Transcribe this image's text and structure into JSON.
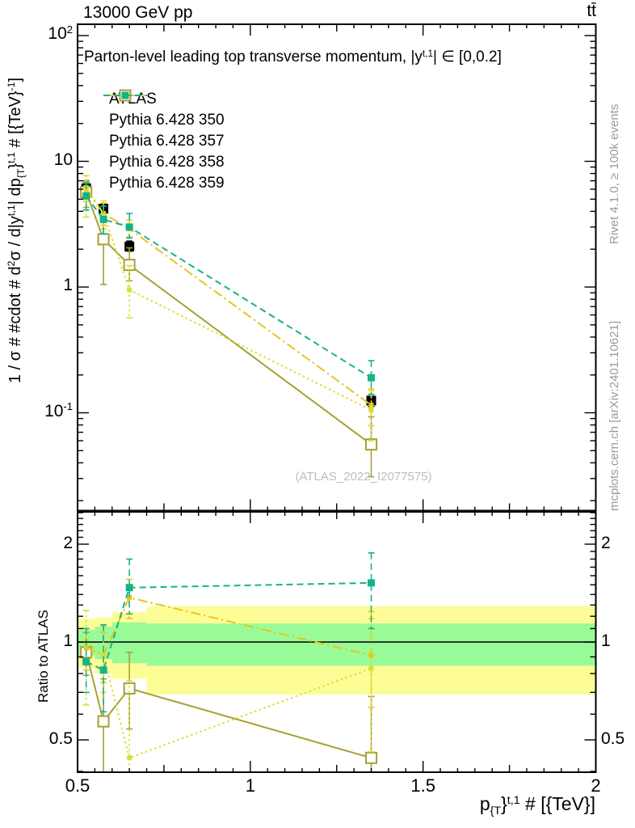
{
  "header": {
    "left_title": "13000 GeV pp",
    "right_title": "tt̄"
  },
  "plot_title": {
    "prefix": "Parton-level leading top transverse momentum, |y",
    "sup": "t,1",
    "suffix": "| ∈ [0,0.2]"
  },
  "watermark": "(ATLAS_2022_I2077575)",
  "side_notes": {
    "top": "Rivet 4.1.0, ≥ 100k events",
    "bottom": "mcplots.cern.ch [arXiv:2401.10621]"
  },
  "axes": {
    "x": {
      "tick_labels": [
        "0.5",
        "1",
        "1.5",
        "2"
      ],
      "tick_values": [
        0.5,
        1,
        1.5,
        2
      ],
      "title_parts": {
        "p1": "p",
        "b1": "{T",
        "p2": "}",
        "s1": "t,1",
        "p3": " # [{TeV}]"
      }
    },
    "y_main": {
      "tick_labels": [
        {
          "base": "10",
          "sup": "2"
        },
        {
          "base": "10",
          "sup": ""
        },
        {
          "base": "1",
          "sup": ""
        },
        {
          "base": "10",
          "sup": "-1"
        }
      ],
      "tick_values": [
        100,
        10,
        1,
        0.1
      ],
      "title_parts": {
        "p1": "1 / σ # #cdot # d",
        "s1": "2",
        "p2": "σ / d|y",
        "s2": "t,1",
        "p3": "| dp",
        "b1": "{T",
        "p4": "}",
        "s3": "t,1",
        "p5": " # [{TeV}",
        "s4": "-1",
        "p6": "]"
      }
    },
    "y_ratio": {
      "tick_labels": [
        "2",
        "1",
        "0.5"
      ],
      "tick_values": [
        2,
        1,
        0.5
      ],
      "title": "Ratio to ATLAS"
    }
  },
  "legend": {
    "entries": [
      {
        "label": "ATLAS",
        "color": "#000000",
        "line": "none",
        "marker": "filled-square",
        "marker_size": 12
      },
      {
        "label": "Pythia 6.428 350",
        "color": "#a6a135",
        "line": "solid",
        "marker": "open-square",
        "marker_size": 13
      },
      {
        "label": "Pythia 6.428 357",
        "color": "#e8c51e",
        "line": "dashdot",
        "marker": "small-square",
        "marker_size": 6
      },
      {
        "label": "Pythia 6.428 358",
        "color": "#d6e032",
        "line": "dotted",
        "marker": "small-square",
        "marker_size": 6
      },
      {
        "label": "Pythia 6.428 359",
        "color": "#16b389",
        "line": "dashed",
        "marker": "filled-square",
        "marker_size": 9
      }
    ]
  },
  "chart_data": {
    "type": "line",
    "title": "Parton-level leading top transverse momentum, |y^{t,1}| ∈ [0,0.2]",
    "xlabel": "p_{T}^{t,1} [TeV]",
    "ylabel": "1/σ d²σ / d|y^{t,1}| dp_{T}^{t,1} [TeV^-1]",
    "ratio_ylabel": "Ratio to ATLAS",
    "x_log": false,
    "y_log": true,
    "xlim": [
      0.5,
      2.0
    ],
    "main_ylim": [
      0.017,
      123
    ],
    "ratio_ylim": [
      0.398,
      2.52
    ],
    "bin_edges": [
      0.5,
      0.55,
      0.6,
      0.7,
      2.0
    ],
    "x_centers": [
      0.525,
      0.575,
      0.65,
      1.35
    ],
    "series": [
      {
        "name": "ATLAS",
        "color": "#000000",
        "line": "none",
        "marker": "filled-square",
        "marker_size": 12,
        "values": [
          6.1,
          4.2,
          2.1,
          0.125
        ],
        "errors": [
          [
            5.5,
            6.8
          ],
          [
            3.9,
            4.6
          ],
          [
            1.93,
            2.32
          ],
          [
            0.112,
            0.14
          ]
        ],
        "ratio": null
      },
      {
        "name": "Pythia 6.428 350",
        "color": "#a6a135",
        "line": "solid",
        "marker": "open-square",
        "marker_size": 13,
        "values": [
          5.7,
          2.4,
          1.5,
          0.056
        ],
        "errors": [
          [
            4.3,
            7.0
          ],
          [
            1.05,
            3.35
          ],
          [
            1.12,
            2.05
          ],
          [
            0.031,
            0.093
          ]
        ],
        "ratio": [
          0.93,
          0.57,
          0.72,
          0.44
        ],
        "ratio_errors": [
          [
            0.79,
            1.07
          ],
          [
            0.38,
            0.77
          ],
          [
            0.54,
            0.93
          ],
          [
            0.27,
            0.68
          ]
        ]
      },
      {
        "name": "Pythia 6.428 357",
        "color": "#e8c51e",
        "line": "dashdot",
        "marker": "small-square",
        "marker_size": 6,
        "values": [
          5.9,
          3.85,
          2.9,
          0.115
        ],
        "errors": [
          [
            4.8,
            7.1
          ],
          [
            3.1,
            4.65
          ],
          [
            2.5,
            3.4
          ],
          [
            0.079,
            0.155
          ]
        ],
        "ratio": [
          0.96,
          0.91,
          1.37,
          0.91
        ],
        "ratio_errors": [
          [
            0.82,
            1.1
          ],
          [
            0.75,
            1.07
          ],
          [
            1.18,
            1.56
          ],
          [
            0.63,
            1.24
          ]
        ]
      },
      {
        "name": "Pythia 6.428 358",
        "color": "#d6e032",
        "line": "dotted",
        "marker": "small-square",
        "marker_size": 6,
        "values": [
          6.2,
          3.85,
          0.95,
          0.105
        ],
        "errors": [
          [
            3.6,
            7.7
          ],
          [
            2.9,
            4.85
          ],
          [
            0.57,
            1.48
          ],
          [
            0.06,
            0.15
          ]
        ],
        "ratio": [
          1.01,
          0.91,
          0.44,
          0.83
        ],
        "ratio_errors": [
          [
            0.64,
            1.25
          ],
          [
            0.7,
            1.12
          ],
          [
            0.37,
            0.76
          ],
          [
            0.46,
            1.18
          ]
        ]
      },
      {
        "name": "Pythia 6.428 359",
        "color": "#16b389",
        "line": "dashed",
        "marker": "filled-square",
        "marker_size": 9,
        "values": [
          5.3,
          3.45,
          3.0,
          0.19
        ],
        "errors": [
          [
            4.1,
            6.8
          ],
          [
            2.65,
            4.4
          ],
          [
            2.45,
            3.85
          ],
          [
            0.14,
            0.26
          ]
        ],
        "ratio": [
          0.87,
          0.82,
          1.47,
          1.52
        ],
        "ratio_errors": [
          [
            0.7,
            1.1
          ],
          [
            0.61,
            1.13
          ],
          [
            1.22,
            1.8
          ],
          [
            1.1,
            1.88
          ]
        ]
      }
    ],
    "ratio_reference": 1.0,
    "ratio_bands": {
      "bin_edges": [
        0.5,
        0.55,
        0.6,
        0.7,
        2.0
      ],
      "yellow_color": "#fdfd97",
      "green_color": "#99fb98",
      "yellow": [
        [
          0.835,
          1.18
        ],
        [
          0.8,
          1.19
        ],
        [
          0.77,
          1.235
        ],
        [
          0.69,
          1.29
        ]
      ],
      "green": [
        [
          0.91,
          1.09
        ],
        [
          0.885,
          1.115
        ],
        [
          0.86,
          1.15
        ],
        [
          0.845,
          1.14
        ]
      ]
    }
  }
}
